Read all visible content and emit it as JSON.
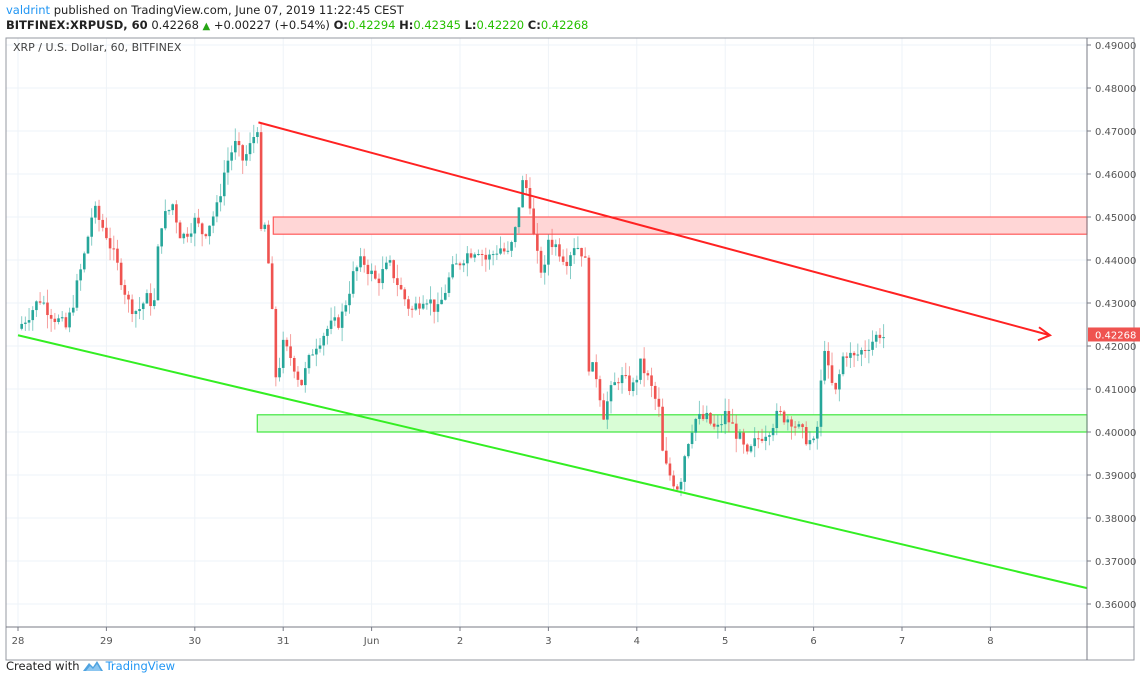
{
  "header": {
    "publisher": "valdrint",
    "published_text": "published on TradingView.com, June 07, 2019 11:22:45 CEST",
    "symbol": "BITFINEX:XRPUSD, 60",
    "last": "0.42268",
    "change": "+0.00227 (+0.54%)",
    "open_label": "O:",
    "open": "0.42294",
    "high_label": "H:",
    "high": "0.42345",
    "low_label": "L:",
    "low": "0.42220",
    "close_label": "C:",
    "close": "0.42268"
  },
  "legend": {
    "title": "XRP / U.S. Dollar, 60, BITFINEX"
  },
  "footer": {
    "created_with": "Created with",
    "brand": "TradingView"
  },
  "colors": {
    "up": "#26a69a",
    "down": "#ef5350",
    "grid": "#eef3f8",
    "resistance_fill": "#ffd6d6",
    "resistance_stroke": "#ff5a5a",
    "support_fill": "#d9fdd6",
    "support_stroke": "#3ee63e",
    "upper_trend": "#ff2222",
    "lower_trend": "#33ee22",
    "price_label_bg": "#ef5350",
    "axis": "#787b86"
  },
  "chart_data": {
    "type": "candlestick",
    "title": "XRP / U.S. Dollar, 60, BITFINEX",
    "timeframe": "60",
    "xlabel": "",
    "ylabel": "",
    "x_ticks": [
      "28",
      "29",
      "30",
      "31",
      "Jun",
      "2",
      "3",
      "4",
      "5",
      "6",
      "7",
      "8"
    ],
    "y_ticks": [
      "0.49000",
      "0.48000",
      "0.47000",
      "0.46000",
      "0.45000",
      "0.44000",
      "0.43000",
      "0.42000",
      "0.41000",
      "0.40000",
      "0.39000",
      "0.38000",
      "0.37000",
      "0.36000"
    ],
    "ylim": [
      0.355,
      0.4925
    ],
    "last_price_label": "0.42268",
    "grid": true,
    "price_path_keypoints": [
      {
        "date": "May 28 00:00",
        "price": 0.424
      },
      {
        "date": "May 28 12:00",
        "price": 0.425
      },
      {
        "date": "May 29 00:00",
        "price": 0.452
      },
      {
        "date": "May 29 12:00",
        "price": 0.432
      },
      {
        "date": "May 30 00:00",
        "price": 0.446
      },
      {
        "date": "May 30 12:00",
        "price": 0.452
      },
      {
        "date": "May 30 18:00",
        "price": 0.472
      },
      {
        "date": "May 31 00:00",
        "price": 0.445
      },
      {
        "date": "May 31 03:00",
        "price": 0.41
      },
      {
        "date": "Jun 01 00:00",
        "price": 0.44
      },
      {
        "date": "Jun 01 12:00",
        "price": 0.427
      },
      {
        "date": "Jun 02 12:00",
        "price": 0.445
      },
      {
        "date": "Jun 03 06:00",
        "price": 0.459
      },
      {
        "date": "Jun 03 12:00",
        "price": 0.44
      },
      {
        "date": "Jun 04 00:00",
        "price": 0.437
      },
      {
        "date": "Jun 04 03:00",
        "price": 0.407
      },
      {
        "date": "Jun 04 18:00",
        "price": 0.413
      },
      {
        "date": "Jun 05 00:00",
        "price": 0.387
      },
      {
        "date": "Jun 05 12:00",
        "price": 0.402
      },
      {
        "date": "Jun 06 12:00",
        "price": 0.398
      },
      {
        "date": "Jun 06 18:00",
        "price": 0.422
      },
      {
        "date": "Jun 07 12:00",
        "price": 0.4227
      }
    ],
    "last_candle": {
      "open": 0.42294,
      "high": 0.42345,
      "low": 0.4222,
      "close": 0.42268,
      "change": 0.00227,
      "change_pct": 0.54
    },
    "annotations": [
      {
        "type": "rectangle",
        "label": "resistance zone",
        "y1": 0.446,
        "y2": 0.45,
        "x_start": "May 30 20:00",
        "color": "red"
      },
      {
        "type": "rectangle",
        "label": "support zone",
        "y1": 0.4,
        "y2": 0.404,
        "x_start": "May 30 18:00",
        "color": "green"
      },
      {
        "type": "trendline",
        "label": "descending resistance (arrow)",
        "from": {
          "date": "May 30 18:00",
          "price": 0.472
        },
        "to": {
          "date": "Jun 08 12:00",
          "price": 0.4225
        },
        "color": "red",
        "arrow": true
      },
      {
        "type": "trendline",
        "label": "descending support",
        "from": {
          "date": "May 28 00:00",
          "price": 0.4225
        },
        "to": {
          "date": "Jun 09 00:00",
          "price": 0.3635
        },
        "color": "green"
      }
    ]
  }
}
